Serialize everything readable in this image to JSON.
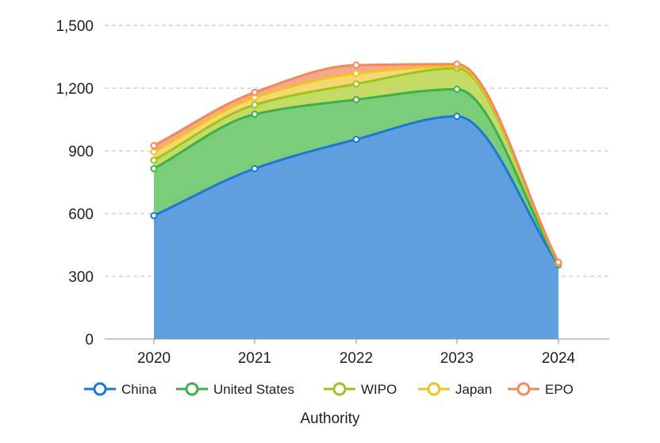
{
  "chart_data": {
    "type": "area",
    "stacked": true,
    "categories": [
      "2020",
      "2021",
      "2022",
      "2023",
      "2024"
    ],
    "xlabel": "Authority",
    "ylabel": "",
    "title": "",
    "ylim": [
      0,
      1500
    ],
    "yticks": [
      0,
      300,
      600,
      900,
      1200,
      1500
    ],
    "ytick_labels": [
      "0",
      "300",
      "600",
      "900",
      "1,200",
      "1,500"
    ],
    "grid": "horizontal dashed",
    "legend_position": "bottom",
    "series": [
      {
        "name": "China",
        "color": "#1e78d2",
        "fill": "#5f9fe0",
        "values": [
          590,
          815,
          955,
          1065,
          355
        ]
      },
      {
        "name": "United States",
        "color": "#3db04b",
        "fill": "#7ccd7b",
        "values": [
          225,
          260,
          190,
          130,
          3
        ]
      },
      {
        "name": "WIPO",
        "color": "#9dc41e",
        "fill": "#c4dc66",
        "values": [
          40,
          45,
          75,
          100,
          3
        ]
      },
      {
        "name": "Japan",
        "color": "#f2c122",
        "fill": "#f7d772",
        "values": [
          40,
          35,
          50,
          10,
          3
        ]
      },
      {
        "name": "EPO",
        "color": "#f08a5d",
        "fill": "#f5a88a",
        "values": [
          30,
          25,
          40,
          10,
          3
        ]
      }
    ]
  }
}
